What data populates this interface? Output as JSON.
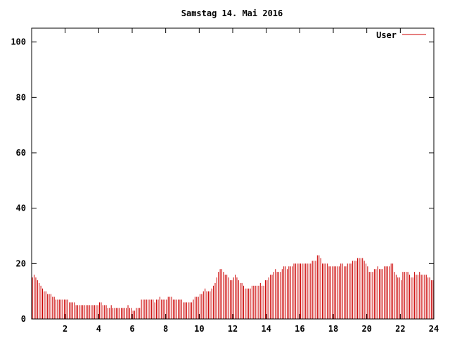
{
  "chart_data": {
    "type": "bar",
    "title": "Samstag 14. Mai 2016",
    "xlabel": "",
    "ylabel": "",
    "xlim": [
      0,
      24
    ],
    "ylim": [
      0,
      105
    ],
    "x_ticks": [
      "2",
      "4",
      "6",
      "8",
      "10",
      "12",
      "14",
      "16",
      "18",
      "20",
      "22",
      "24"
    ],
    "y_ticks": [
      "0",
      "20",
      "40",
      "60",
      "80",
      "100"
    ],
    "grid": false,
    "legend_position": "top-right",
    "series": [
      {
        "name": "User",
        "color": "#cc0000",
        "values": [
          15,
          16,
          15,
          14,
          13,
          12,
          11,
          10,
          10,
          9,
          9,
          9,
          8,
          8,
          7,
          7,
          7,
          7,
          7,
          7,
          7,
          7,
          6,
          6,
          6,
          6,
          5,
          5,
          5,
          5,
          5,
          5,
          5,
          5,
          5,
          5,
          5,
          5,
          5,
          5,
          6,
          6,
          5,
          5,
          5,
          4,
          4,
          5,
          4,
          4,
          4,
          4,
          4,
          4,
          4,
          4,
          4,
          5,
          4,
          4,
          3,
          3,
          4,
          4,
          4,
          7,
          7,
          7,
          7,
          7,
          7,
          7,
          7,
          6,
          7,
          7,
          8,
          7,
          7,
          7,
          7,
          8,
          8,
          8,
          7,
          7,
          7,
          7,
          7,
          7,
          6,
          6,
          6,
          6,
          6,
          6,
          7,
          8,
          8,
          8,
          9,
          9,
          10,
          11,
          10,
          10,
          10,
          11,
          12,
          13,
          15,
          17,
          18,
          18,
          17,
          16,
          16,
          15,
          14,
          14,
          15,
          16,
          15,
          14,
          13,
          13,
          12,
          11,
          11,
          11,
          11,
          12,
          12,
          12,
          12,
          12,
          13,
          12,
          12,
          14,
          14,
          15,
          16,
          16,
          17,
          18,
          17,
          17,
          17,
          18,
          19,
          19,
          18,
          19,
          19,
          19,
          20,
          20,
          20,
          20,
          20,
          20,
          20,
          20,
          20,
          20,
          20,
          21,
          21,
          21,
          23,
          23,
          22,
          20,
          20,
          20,
          20,
          19,
          19,
          19,
          19,
          19,
          19,
          19,
          20,
          20,
          19,
          19,
          20,
          20,
          20,
          21,
          21,
          21,
          22,
          22,
          22,
          22,
          21,
          20,
          19,
          17,
          17,
          17,
          18,
          18,
          19,
          18,
          18,
          18,
          19,
          19,
          19,
          19,
          20,
          20,
          17,
          16,
          15,
          15,
          14,
          17,
          17,
          17,
          17,
          16,
          15,
          15,
          17,
          16,
          16,
          17,
          16,
          16,
          16,
          16,
          15,
          15,
          14,
          14
        ]
      }
    ]
  }
}
